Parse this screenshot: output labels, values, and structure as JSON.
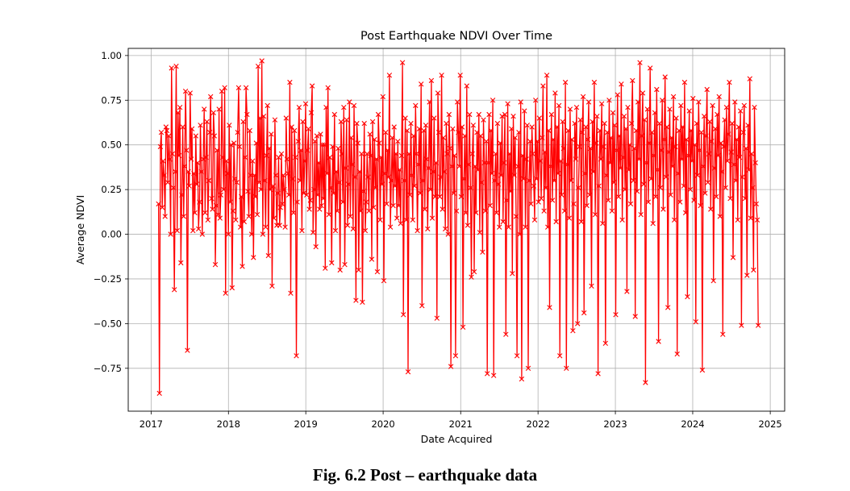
{
  "caption": "Fig. 6.2 Post – earthquake data",
  "chart_data": {
    "type": "line",
    "title": "Post Earthquake NDVI Over Time",
    "xlabel": "Date Acquired",
    "ylabel": "Average NDVI",
    "xlim": [
      "2016-09-15",
      "2025-03-10"
    ],
    "ylim": [
      -0.99,
      1.04
    ],
    "x_ticks": [
      "2017",
      "2018",
      "2019",
      "2020",
      "2021",
      "2022",
      "2023",
      "2024",
      "2025"
    ],
    "y_ticks": [
      "1.00",
      "0.75",
      "0.50",
      "0.25",
      "0.00",
      "−0.25",
      "−0.50",
      "−0.75"
    ],
    "grid": true,
    "marker": "x",
    "series": [
      {
        "color": "#ff0000",
        "x_start": "2017-02-05",
        "x_end": "2024-11-05",
        "values": [
          0.17,
          -0.89,
          0.49,
          0.57,
          0.15,
          0.41,
          0.33,
          0.1,
          0.6,
          0.58,
          0.29,
          0.55,
          0.42,
          0.0,
          0.93,
          0.45,
          0.26,
          -0.31,
          0.35,
          0.94,
          0.02,
          0.68,
          0.44,
          0.71,
          -0.16,
          0.22,
          0.6,
          0.1,
          0.38,
          0.8,
          0.47,
          -0.65,
          0.35,
          0.27,
          0.79,
          0.42,
          0.59,
          0.02,
          0.34,
          0.12,
          0.55,
          0.28,
          0.4,
          0.03,
          0.18,
          0.61,
          0.35,
          0.0,
          0.42,
          0.7,
          0.12,
          0.43,
          0.63,
          0.08,
          0.3,
          0.57,
          0.77,
          0.2,
          0.14,
          0.68,
          0.55,
          -0.17,
          0.16,
          0.47,
          0.11,
          0.7,
          0.09,
          0.22,
          0.8,
          0.43,
          0.25,
          0.82,
          -0.33,
          0.41,
          0.34,
          0.0,
          0.61,
          0.18,
          0.5,
          -0.3,
          0.13,
          0.51,
          0.31,
          0.08,
          0.29,
          0.57,
          0.82,
          0.49,
          0.04,
          0.21,
          -0.18,
          0.63,
          0.07,
          0.43,
          0.82,
          0.67,
          0.24,
          0.1,
          0.58,
          0.33,
          0.0,
          0.41,
          -0.13,
          0.33,
          0.21,
          0.51,
          0.11,
          0.94,
          0.29,
          0.65,
          0.25,
          0.97,
          0.0,
          0.66,
          0.3,
          0.04,
          0.44,
          0.72,
          -0.12,
          0.48,
          0.25,
          0.56,
          -0.29,
          0.27,
          0.09,
          0.64,
          0.33,
          0.05,
          0.23,
          0.43,
          0.05,
          0.15,
          0.45,
          0.17,
          0.33,
          0.25,
          0.04,
          0.65,
          0.42,
          0.34,
          0.22,
          0.85,
          -0.33,
          0.6,
          0.31,
          0.12,
          0.58,
          0.43,
          -0.68,
          0.18,
          0.52,
          0.71,
          0.3,
          0.47,
          0.02,
          0.63,
          0.23,
          0.41,
          0.73,
          0.22,
          0.47,
          0.59,
          0.14,
          0.19,
          0.68,
          0.83,
          0.01,
          0.25,
          0.52,
          -0.07,
          0.55,
          0.22,
          0.4,
          0.14,
          0.56,
          0.16,
          0.5,
          0.2,
          0.5,
          -0.19,
          0.71,
          0.34,
          0.82,
          0.11,
          0.43,
          0.26,
          -0.16,
          0.49,
          0.23,
          0.67,
          0.02,
          0.35,
          0.13,
          0.48,
          0.29,
          -0.2,
          0.63,
          0.45,
          0.18,
          0.71,
          -0.17,
          0.37,
          0.64,
          0.05,
          0.28,
          0.74,
          0.1,
          0.54,
          0.39,
          0.03,
          0.72,
          0.32,
          -0.37,
          0.62,
          0.51,
          -0.2,
          0.35,
          0.13,
          0.45,
          -0.38,
          0.24,
          0.62,
          0.02,
          0.18,
          0.45,
          0.32,
          0.13,
          0.56,
          0.44,
          -0.14,
          0.63,
          0.15,
          0.53,
          0.26,
          0.42,
          -0.21,
          0.67,
          0.51,
          0.08,
          0.43,
          0.28,
          0.77,
          -0.26,
          0.34,
          0.57,
          0.17,
          0.47,
          0.32,
          0.89,
          0.04,
          0.3,
          0.54,
          0.16,
          0.6,
          0.27,
          0.45,
          0.09,
          0.52,
          0.16,
          0.36,
          0.06,
          0.44,
          0.96,
          -0.45,
          0.3,
          0.65,
          0.08,
          0.58,
          -0.77,
          0.45,
          0.22,
          0.62,
          0.33,
          0.08,
          0.55,
          0.27,
          0.72,
          0.45,
          0.02,
          0.39,
          0.59,
          0.23,
          0.84,
          -0.4,
          0.3,
          0.58,
          0.14,
          0.61,
          0.42,
          0.03,
          0.37,
          0.74,
          0.25,
          0.86,
          0.09,
          0.35,
          0.65,
          0.21,
          0.4,
          -0.47,
          0.79,
          0.57,
          0.21,
          0.32,
          0.89,
          0.14,
          0.54,
          0.35,
          0.03,
          0.62,
          0.45,
          0.0,
          0.67,
          0.48,
          -0.74,
          0.38,
          0.59,
          0.23,
          0.44,
          -0.68,
          0.13,
          0.74,
          0.57,
          0.38,
          0.89,
          0.21,
          0.6,
          -0.52,
          0.31,
          0.55,
          0.12,
          0.83,
          0.05,
          0.39,
          0.67,
          0.26,
          -0.24,
          0.45,
          0.61,
          -0.21,
          0.38,
          0.12,
          0.57,
          0.36,
          0.67,
          0.01,
          0.55,
          0.29,
          -0.1,
          0.64,
          0.4,
          0.13,
          0.52,
          -0.78,
          0.4,
          0.67,
          0.16,
          0.58,
          0.34,
          0.75,
          -0.79,
          0.3,
          0.45,
          0.12,
          0.62,
          0.28,
          0.04,
          0.51,
          0.33,
          0.66,
          0.07,
          0.4,
          0.67,
          -0.56,
          0.19,
          0.73,
          0.04,
          0.45,
          0.24,
          0.59,
          -0.22,
          0.66,
          0.33,
          0.54,
          0.1,
          -0.68,
          0.38,
          0.57,
          0.0,
          0.74,
          -0.81,
          0.44,
          0.31,
          0.69,
          0.04,
          0.42,
          0.61,
          -0.75,
          0.3,
          0.52,
          0.17,
          0.6,
          0.45,
          0.27,
          0.08,
          0.75,
          0.31,
          0.52,
          0.18,
          0.65,
          0.41,
          0.2,
          0.54,
          0.83,
          0.13,
          0.46,
          0.26,
          0.89,
          0.04,
          0.58,
          -0.41,
          0.38,
          0.67,
          0.19,
          0.53,
          0.3,
          0.79,
          0.07,
          0.6,
          0.34,
          0.72,
          -0.68,
          0.41,
          0.22,
          0.63,
          0.48,
          0.13,
          0.85,
          -0.75,
          0.39,
          0.58,
          0.09,
          0.7,
          0.3,
          0.53,
          -0.54,
          0.17,
          0.62,
          0.42,
          0.71,
          -0.5,
          0.26,
          0.49,
          0.64,
          0.07,
          0.57,
          0.77,
          -0.44,
          0.34,
          0.6,
          0.16,
          0.53,
          0.74,
          0.22,
          0.48,
          -0.29,
          0.63,
          0.35,
          0.85,
          0.11,
          0.51,
          0.66,
          -0.78,
          0.27,
          0.58,
          0.42,
          0.73,
          0.06,
          0.49,
          0.62,
          -0.61,
          0.33,
          0.57,
          0.19,
          0.75,
          0.4,
          0.54,
          0.13,
          0.68,
          0.29,
          0.61,
          -0.45,
          0.47,
          0.78,
          0.21,
          0.55,
          0.37,
          0.84,
          0.08,
          0.43,
          0.66,
          0.25,
          0.59,
          -0.32,
          0.71,
          0.36,
          0.5,
          0.17,
          0.62,
          0.86,
          0.3,
          0.48,
          -0.46,
          0.58,
          0.24,
          0.74,
          0.42,
          0.96,
          0.11,
          0.55,
          0.79,
          0.28,
          0.64,
          -0.83,
          0.4,
          0.7,
          0.18,
          0.51,
          0.93,
          0.31,
          0.57,
          0.06,
          0.44,
          0.68,
          0.21,
          0.81,
          0.36,
          -0.6,
          0.62,
          0.26,
          0.47,
          0.75,
          0.14,
          0.53,
          0.88,
          0.32,
          0.6,
          -0.41,
          0.46,
          0.7,
          0.22,
          0.54,
          0.38,
          0.77,
          0.08,
          0.49,
          0.65,
          -0.67,
          0.34,
          0.58,
          0.18,
          0.72,
          0.42,
          0.6,
          0.27,
          0.85,
          0.12,
          0.53,
          -0.35,
          0.44,
          0.69,
          0.25,
          0.58,
          0.41,
          0.76,
          0.19,
          0.5,
          -0.49,
          0.62,
          0.33,
          0.74,
          0.47,
          0.16,
          0.57,
          -0.76,
          0.38,
          0.66,
          0.23,
          0.55,
          0.81,
          0.29,
          0.45,
          0.63,
          0.14,
          0.52,
          0.72,
          -0.26,
          0.37,
          0.59,
          0.21,
          0.67,
          0.44,
          0.77,
          0.1,
          0.51,
          0.35,
          -0.56,
          0.49,
          0.64,
          0.26,
          0.71,
          0.41,
          0.56,
          0.85,
          0.2,
          0.46,
          0.62,
          -0.13,
          0.39,
          0.74,
          0.3,
          0.53,
          0.08,
          0.6,
          0.43,
          0.69,
          -0.51,
          0.32,
          0.57,
          0.72,
          0.2,
          0.48,
          -0.23,
          0.61,
          0.36,
          0.87,
          0.09,
          0.45,
          0.26,
          -0.2,
          0.71,
          0.4,
          0.17,
          0.08,
          -0.51
        ]
      }
    ]
  }
}
